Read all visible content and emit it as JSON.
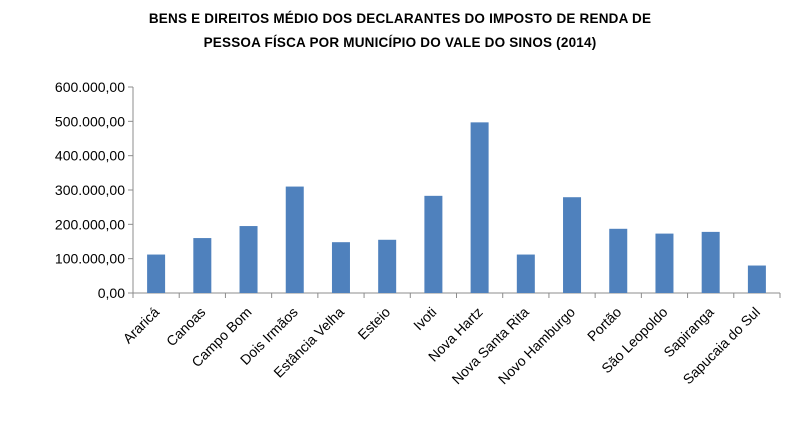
{
  "chart_data": {
    "type": "bar",
    "title": "BENS E DIREITOS  MÉDIO DOS DECLARANTES DO IMPOSTO DE RENDA DE PESSOA FÍSCA POR MUNICÍPIO  DO VALE DO SINOS (2014)",
    "title_line1": "BENS E DIREITOS  MÉDIO DOS DECLARANTES DO IMPOSTO DE RENDA DE",
    "title_line2": "PESSOA FÍSCA POR MUNICÍPIO  DO VALE DO SINOS (2014)",
    "categories": [
      "Araricá",
      "Canoas",
      "Campo Bom",
      "Dois Irmãos",
      "Estância Velha",
      "Esteio",
      "Ivoti",
      "Nova Hartz",
      "Nova Santa Rita",
      "Novo Hamburgo",
      "Portão",
      "São Leopoldo",
      "Sapiranga",
      "Sapucaia do Sul"
    ],
    "values": [
      112000,
      160000,
      195000,
      310000,
      148000,
      155000,
      283000,
      497000,
      112000,
      279000,
      187000,
      173000,
      178000,
      80000
    ],
    "ylim": [
      0,
      600000
    ],
    "yticks": [
      0,
      100000,
      200000,
      300000,
      400000,
      500000,
      600000
    ],
    "ytick_labels": [
      "0,00",
      "100.000,00",
      "200.000,00",
      "300.000,00",
      "400.000,00",
      "500.000,00",
      "600.000,00"
    ],
    "xlabel": "",
    "ylabel": "",
    "grid": false,
    "bar_color": "#4f81bd"
  }
}
